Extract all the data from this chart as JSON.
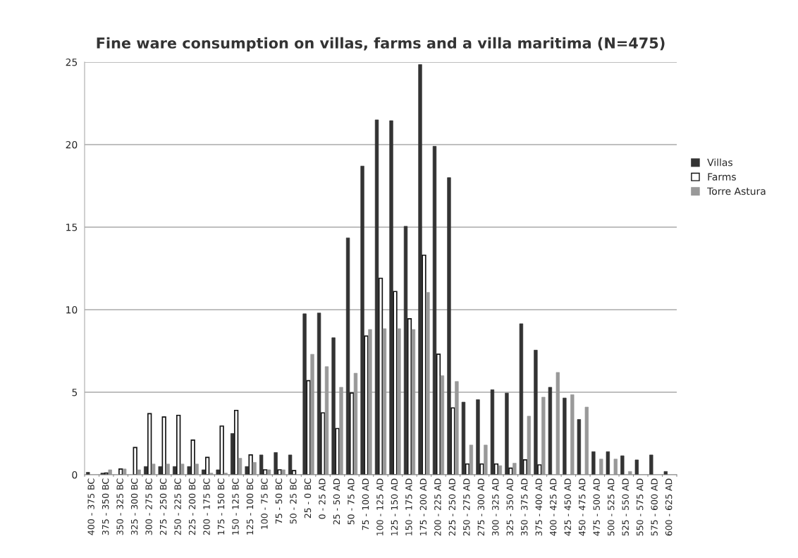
{
  "chart_data": {
    "type": "bar",
    "title": "Fine ware consumption on villas, farms and a villa maritima (N=475)",
    "categories": [
      "400 - 375 BC",
      "375 - 350 BC",
      "350 - 325 BC",
      "325 - 300 BC",
      "300 - 275 BC",
      "275 - 250 BC",
      "250 - 225 BC",
      "225 - 200 BC",
      "200 - 175 BC",
      "175 - 150 BC",
      "150 - 125 BC",
      "125 - 100 BC",
      "100 - 75 BC",
      "75 - 50 BC",
      "50 - 25 BC",
      "25 - 0 BC",
      "0 - 25 AD",
      "25 - 50 AD",
      "50 - 75 AD",
      "75 - 100 AD",
      "100 - 125 AD",
      "125 - 150 AD",
      "150 - 175 AD",
      "175 - 200 AD",
      "200 - 225 AD",
      "225 - 250 AD",
      "250 - 275 AD",
      "275 - 300 AD",
      "300 - 325 AD",
      "325 - 350 AD",
      "350 - 375 AD",
      "375 - 400 AD",
      "400 - 425 AD",
      "425 - 450 AD",
      "450 - 475 AD",
      "475 - 500 AD",
      "500 - 525 AD",
      "525 - 550 AD",
      "550 - 575 AD",
      "575 - 600 AD",
      "600 - 625 AD"
    ],
    "series": [
      {
        "name": "Villas",
        "color": "#333333",
        "values": [
          0.15,
          0.1,
          0,
          0,
          0.5,
          0.5,
          0.5,
          0.5,
          0.3,
          0.3,
          2.5,
          0.5,
          1.2,
          1.35,
          1.2,
          9.75,
          9.8,
          8.3,
          14.35,
          18.7,
          21.5,
          21.45,
          15.05,
          24.85,
          19.9,
          18.0,
          4.4,
          4.55,
          5.15,
          4.95,
          9.15,
          7.55,
          5.3,
          4.65,
          3.35,
          1.4,
          1.4,
          1.15,
          0.9,
          1.2,
          0.2
        ]
      },
      {
        "name": "Farms",
        "color": "#ffffff",
        "values": [
          0,
          0.1,
          0.35,
          1.65,
          3.7,
          3.5,
          3.6,
          2.1,
          1.05,
          2.95,
          3.9,
          1.2,
          0.3,
          0.3,
          0.25,
          5.7,
          3.75,
          2.8,
          4.95,
          8.4,
          11.9,
          11.1,
          9.45,
          13.3,
          7.3,
          4.05,
          0.65,
          0.65,
          0.65,
          0.4,
          0.9,
          0.6,
          0,
          0,
          0,
          0,
          0,
          0,
          0,
          0,
          0
        ]
      },
      {
        "name": "Torre Astura",
        "color": "#999999",
        "values": [
          0,
          0.3,
          0.35,
          0.3,
          0.65,
          0.65,
          0.65,
          0.65,
          0.1,
          0.1,
          1.0,
          0.75,
          0.3,
          0.3,
          0,
          7.3,
          6.55,
          5.3,
          6.15,
          8.8,
          8.85,
          8.85,
          8.8,
          11.05,
          6.0,
          5.65,
          1.8,
          1.8,
          0.55,
          0.7,
          3.55,
          4.7,
          6.2,
          4.85,
          4.1,
          0.95,
          0.95,
          0.2,
          0,
          0,
          0
        ]
      }
    ],
    "ylim": [
      0,
      25
    ],
    "yticks": [
      0,
      5,
      10,
      15,
      20,
      25
    ],
    "grid": "y",
    "legend": "right"
  }
}
